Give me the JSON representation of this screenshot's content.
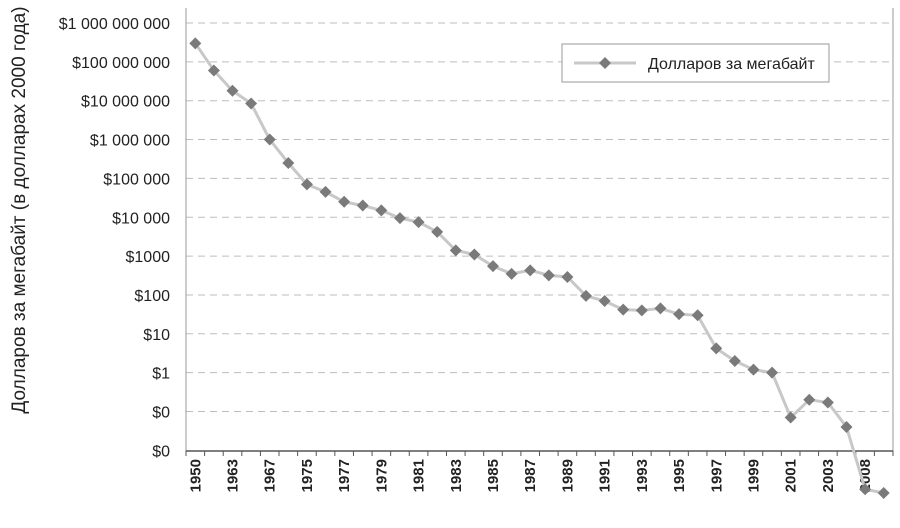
{
  "chart_data": {
    "type": "line",
    "ylabel": "Долларов за мегабайт (в долларах 2000 года)",
    "yscale": "log",
    "ytick_labels": [
      "$1 000 000 000",
      "$100 000 000",
      "$10 000 000",
      "$1 000 000",
      "$100 000",
      "$10 000",
      "$1000",
      "$100",
      "$10",
      "$1",
      "$0",
      "$0"
    ],
    "xtick_labels": [
      "1950",
      "1963",
      "1967",
      "1975",
      "1977",
      "1979",
      "1981",
      "1983",
      "1985",
      "1987",
      "1989",
      "1991",
      "1993",
      "1995",
      "1997",
      "1999",
      "2001",
      "2003",
      "2008"
    ],
    "grid": true,
    "legend_position": "top-right",
    "series": [
      {
        "name": "Долларов за мегабайт",
        "color": "#7a7a7a",
        "line_color": "#c8c8c8",
        "values": [
          300000000,
          60000000,
          18000000,
          8500000,
          1000000,
          250000,
          70000,
          45000,
          25000,
          20000,
          15000,
          9500,
          7500,
          4200,
          1400,
          1100,
          550,
          350,
          430,
          320,
          290,
          95,
          70,
          42,
          40,
          45,
          32,
          30,
          4.2,
          2,
          1.2,
          1,
          0.07,
          0.2,
          0.17,
          0.04,
          0.001,
          0.0008
        ]
      }
    ]
  }
}
